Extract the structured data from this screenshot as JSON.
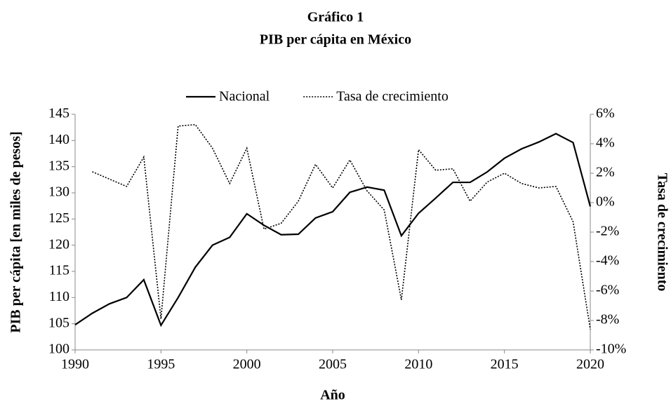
{
  "chart_data": {
    "type": "line",
    "title": "Gráfico 1",
    "subtitle": "PIB per cápita en México",
    "xlabel": "Año",
    "ylabel": "PIB per cápita [en miles de pesos]",
    "y2label": "Tasa de crecimiento",
    "x": [
      1990,
      1991,
      1992,
      1993,
      1994,
      1995,
      1996,
      1997,
      1998,
      1999,
      2000,
      2001,
      2002,
      2003,
      2004,
      2005,
      2006,
      2007,
      2008,
      2009,
      2010,
      2011,
      2012,
      2013,
      2014,
      2015,
      2016,
      2017,
      2018,
      2019,
      2020
    ],
    "series": [
      {
        "name": "Nacional",
        "color": "#000000",
        "style": "solid",
        "values": [
          104.8,
          107,
          108.8,
          110,
          113.4,
          104.7,
          110,
          115.8,
          120,
          121.5,
          126,
          123.8,
          122,
          122.1,
          125.2,
          126.4,
          130.1,
          131.1,
          130.5,
          121.8,
          126.1,
          129,
          132,
          132,
          134,
          136.6,
          138.4,
          139.7,
          141.3,
          139.6,
          127.4
        ]
      },
      {
        "name": "Tasa de crecimiento",
        "color": "#000000",
        "style": "dotted",
        "axis": "y2",
        "values": [
          null,
          2.1,
          1.6,
          1.1,
          3.1,
          -7.9,
          5.2,
          5.3,
          3.7,
          1.3,
          3.7,
          -1.8,
          -1.4,
          0.1,
          2.6,
          1.0,
          2.9,
          0.8,
          -0.5,
          -6.6,
          3.6,
          2.2,
          2.3,
          0.1,
          1.4,
          2.0,
          1.3,
          1.0,
          1.1,
          -1.3,
          -8.6
        ]
      }
    ],
    "xlim": [
      1990,
      2020
    ],
    "xticks": [
      1990,
      1995,
      2000,
      2005,
      2010,
      2015,
      2020
    ],
    "ylim": [
      100,
      145
    ],
    "yticks": [
      100,
      105,
      110,
      115,
      120,
      125,
      130,
      135,
      140,
      145
    ],
    "y2lim": [
      -10,
      6
    ],
    "y2ticks": [
      {
        "value": -10,
        "label": "-10%"
      },
      {
        "value": -8,
        "label": "-8%"
      },
      {
        "value": -6,
        "label": "-6%"
      },
      {
        "value": -4,
        "label": "-4%"
      },
      {
        "value": -2,
        "label": "-2%"
      },
      {
        "value": 0,
        "label": "0%"
      },
      {
        "value": 2,
        "label": "2%"
      },
      {
        "value": 4,
        "label": "4%"
      },
      {
        "value": 6,
        "label": "6%"
      }
    ],
    "legend": "top",
    "grid": false
  }
}
